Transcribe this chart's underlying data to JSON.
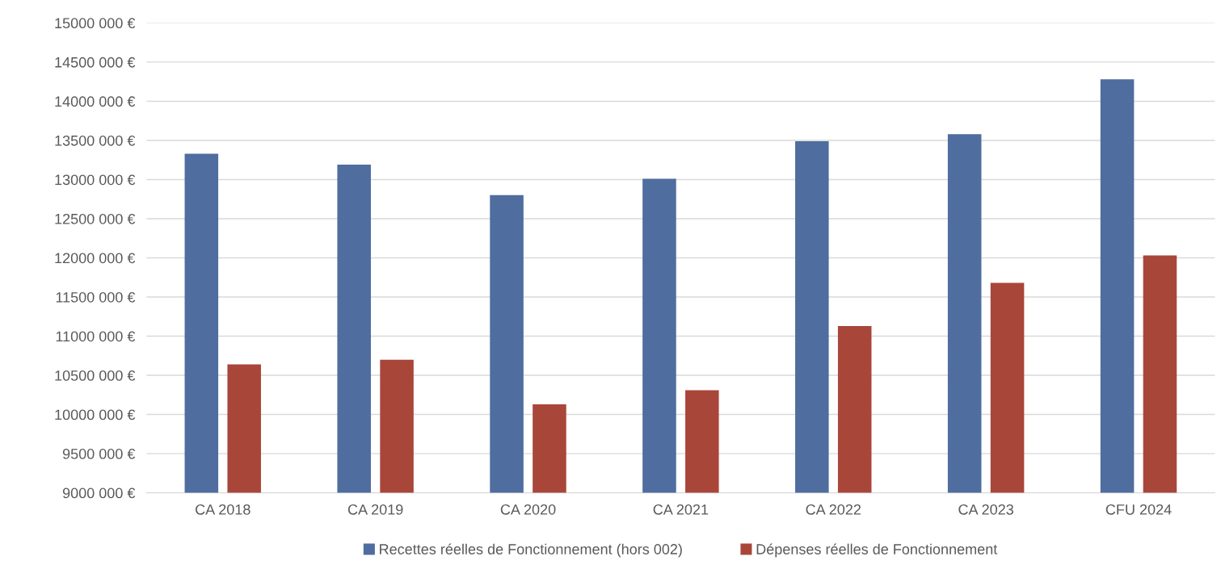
{
  "chart_data": {
    "type": "bar",
    "categories": [
      "CA 2018",
      "CA 2019",
      "CA 2020",
      "CA 2021",
      "CA 2022",
      "CA 2023",
      "CFU 2024"
    ],
    "series": [
      {
        "name": "Recettes réelles de Fonctionnement (hors 002)",
        "color": "#4f6d9e",
        "values": [
          13330000,
          13190000,
          12800000,
          13010000,
          13490000,
          13580000,
          14280000
        ]
      },
      {
        "name": "Dépenses réelles de Fonctionnement",
        "color": "#a9463a",
        "values": [
          10640000,
          10700000,
          10130000,
          10310000,
          11130000,
          11680000,
          12030000
        ]
      }
    ],
    "ylim": [
      9000000,
      15000000
    ],
    "yticks": [
      {
        "value": 9000000,
        "label": "9000 000 €"
      },
      {
        "value": 9500000,
        "label": "9500 000 €"
      },
      {
        "value": 10000000,
        "label": "10000 000 €"
      },
      {
        "value": 10500000,
        "label": "10500 000 €"
      },
      {
        "value": 11000000,
        "label": "11000 000 €"
      },
      {
        "value": 11500000,
        "label": "11500 000 €"
      },
      {
        "value": 12000000,
        "label": "12000 000 €"
      },
      {
        "value": 12500000,
        "label": "12500 000 €"
      },
      {
        "value": 13000000,
        "label": "13000 000 €"
      },
      {
        "value": 13500000,
        "label": "13500 000 €"
      },
      {
        "value": 14000000,
        "label": "14000 000 €"
      },
      {
        "value": 14500000,
        "label": "14500 000 €"
      },
      {
        "value": 15000000,
        "label": "15000 000 €"
      }
    ],
    "grid": "y",
    "legend": "bottom"
  }
}
